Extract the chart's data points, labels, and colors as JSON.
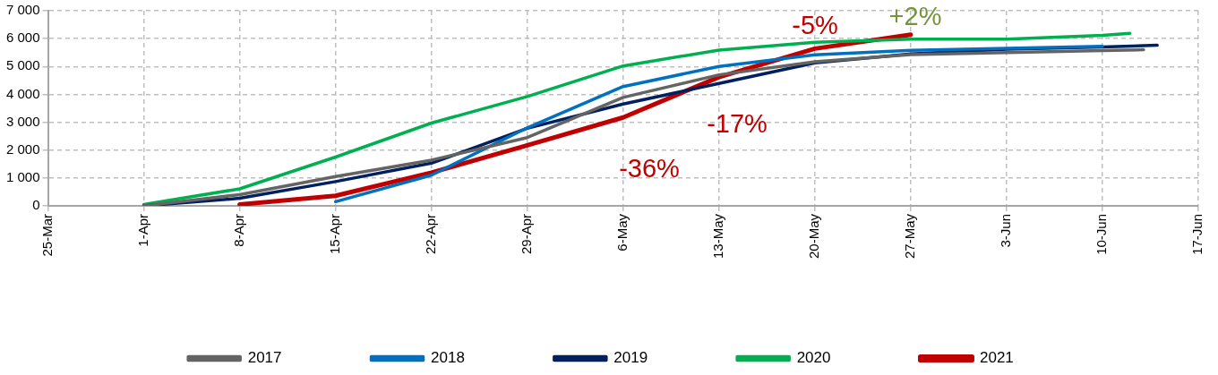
{
  "chart_data": {
    "type": "line",
    "legend": "bottom",
    "grid": true,
    "line_style": "solid",
    "marker": "none",
    "xlim": [
      "--03-25",
      "--06-17"
    ],
    "xticks": [
      {
        "value": "--03-25",
        "label": "25-Mar"
      },
      {
        "value": "--04-01",
        "label": "1-Apr"
      },
      {
        "value": "--04-08",
        "label": "8-Apr"
      },
      {
        "value": "--04-15",
        "label": "15-Apr"
      },
      {
        "value": "--04-22",
        "label": "22-Apr"
      },
      {
        "value": "--04-29",
        "label": "29-Apr"
      },
      {
        "value": "--05-06",
        "label": "6-May"
      },
      {
        "value": "--05-13",
        "label": "13-May"
      },
      {
        "value": "--05-20",
        "label": "20-May"
      },
      {
        "value": "--05-27",
        "label": "27-May"
      },
      {
        "value": "--06-03",
        "label": "3-Jun"
      },
      {
        "value": "--06-10",
        "label": "10-Jun"
      },
      {
        "value": "--06-17",
        "label": "17-Jun"
      }
    ],
    "ylim": [
      0,
      7000
    ],
    "yticks": [
      {
        "value": 0,
        "label": "0"
      },
      {
        "value": 1000,
        "label": "1 000"
      },
      {
        "value": 2000,
        "label": "2 000"
      },
      {
        "value": 3000,
        "label": "3 000"
      },
      {
        "value": 4000,
        "label": "4 000"
      },
      {
        "value": 5000,
        "label": "5 000"
      },
      {
        "value": 6000,
        "label": "6 000"
      },
      {
        "value": 7000,
        "label": "7 000"
      }
    ],
    "series": [
      {
        "name": "2017",
        "color": "#646464",
        "x": [
          "--04-01",
          "--04-08",
          "--04-15",
          "--04-22",
          "--04-29",
          "--05-06",
          "--05-13",
          "--05-20",
          "--05-27",
          "--06-03",
          "--06-10",
          "--06-13"
        ],
        "values": [
          0,
          400,
          1050,
          1640,
          2450,
          3890,
          4700,
          5170,
          5430,
          5500,
          5570,
          5600
        ]
      },
      {
        "name": "2018",
        "color": "#0070c0",
        "x": [
          "--04-15",
          "--04-22",
          "--04-29",
          "--05-06",
          "--05-13",
          "--05-20",
          "--05-27",
          "--06-03",
          "--06-10"
        ],
        "values": [
          150,
          1100,
          2800,
          4280,
          5000,
          5420,
          5580,
          5650,
          5720
        ]
      },
      {
        "name": "2019",
        "color": "#002060",
        "x": [
          "--04-01",
          "--04-08",
          "--04-15",
          "--04-22",
          "--04-29",
          "--05-06",
          "--05-13",
          "--05-20",
          "--05-27",
          "--06-03",
          "--06-10",
          "--06-14"
        ],
        "values": [
          0,
          270,
          870,
          1530,
          2780,
          3650,
          4390,
          5130,
          5450,
          5620,
          5700,
          5760
        ]
      },
      {
        "name": "2020",
        "color": "#00b050",
        "x": [
          "--04-01",
          "--04-08",
          "--04-15",
          "--04-22",
          "--04-29",
          "--05-06",
          "--05-13",
          "--05-20",
          "--05-27",
          "--06-03",
          "--06-10",
          "--06-12"
        ],
        "values": [
          50,
          610,
          1750,
          2970,
          3920,
          5020,
          5590,
          5870,
          5980,
          5980,
          6120,
          6190
        ]
      },
      {
        "name": "2021",
        "color": "#c00000",
        "x": [
          "--04-08",
          "--04-15",
          "--04-22",
          "--04-29",
          "--05-06",
          "--05-13",
          "--05-20",
          "--05-27"
        ],
        "values": [
          50,
          360,
          1190,
          2170,
          3170,
          4620,
          5640,
          6140
        ]
      }
    ],
    "annotations": [
      "-36%",
      "-17%",
      "-5%",
      "+2%"
    ]
  }
}
